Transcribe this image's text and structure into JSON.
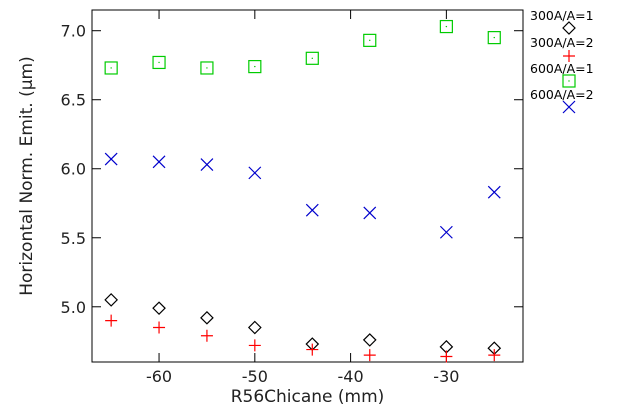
{
  "chart_data": {
    "type": "scatter",
    "title": "",
    "xlabel": "R56Chicane (mm)",
    "ylabel": "Horizontal Norm. Emit. (μm)",
    "xlim": [
      -67,
      -22
    ],
    "ylim": [
      4.6,
      7.15
    ],
    "xticks": [
      -60,
      -50,
      -40,
      -30
    ],
    "yticks": [
      5.0,
      5.5,
      6.0,
      6.5,
      7.0
    ],
    "xtick_labels": [
      "-60",
      "-50",
      "-40",
      "-30"
    ],
    "ytick_labels": [
      "5.0",
      "5.5",
      "6.0",
      "6.5",
      "7.0"
    ],
    "grid": false,
    "legend_position": "right",
    "series": [
      {
        "name": "300A/A=1",
        "marker": "diamond",
        "color": "#000000",
        "x": [
          -65,
          -60,
          -55,
          -50,
          -44,
          -38,
          -30,
          -25
        ],
        "y": [
          5.05,
          4.99,
          4.92,
          4.85,
          4.73,
          4.76,
          4.71,
          4.7
        ]
      },
      {
        "name": "300A/A=2",
        "marker": "plus",
        "color": "#ff0000",
        "x": [
          -65,
          -60,
          -55,
          -50,
          -44,
          -38,
          -30,
          -25
        ],
        "y": [
          4.9,
          4.85,
          4.79,
          4.72,
          4.69,
          4.65,
          4.64,
          4.65
        ]
      },
      {
        "name": "600A/A=1",
        "marker": "square",
        "color": "#00cc00",
        "x": [
          -65,
          -60,
          -55,
          -50,
          -44,
          -38,
          -30,
          -25
        ],
        "y": [
          6.73,
          6.77,
          6.73,
          6.74,
          6.8,
          6.93,
          7.03,
          6.95
        ]
      },
      {
        "name": "600A/A=2",
        "marker": "x",
        "color": "#0000cc",
        "x": [
          -65,
          -60,
          -55,
          -50,
          -44,
          -38,
          -30,
          -25
        ],
        "y": [
          6.07,
          6.05,
          6.03,
          5.97,
          5.7,
          5.68,
          5.54,
          5.83
        ]
      }
    ]
  }
}
